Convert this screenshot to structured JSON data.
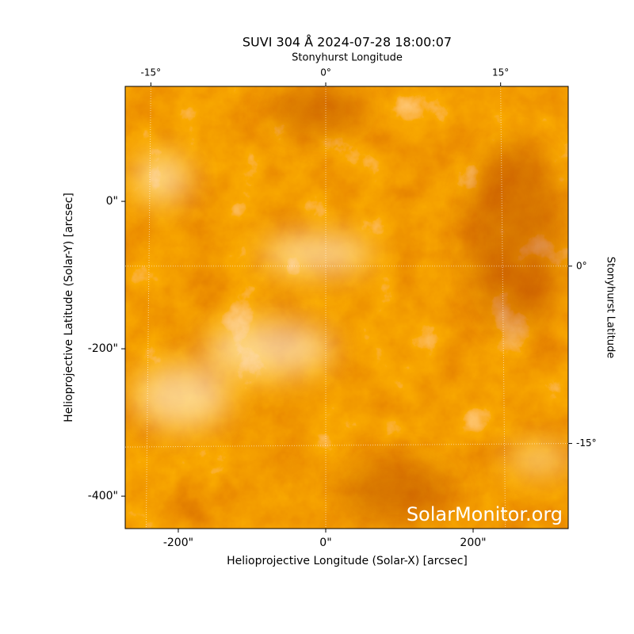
{
  "chart_data": {
    "type": "image",
    "title": "SUVI 304 Å 2024-07-28 18:00:07",
    "xlabel": "Helioprojective Longitude (Solar-X) [arcsec]",
    "ylabel": "Helioprojective Latitude (Solar-Y) [arcsec]",
    "x2label": "Stonyhurst Longitude",
    "y2label": "Stonyhurst Latitude",
    "annotation": "SolarMonitor.org",
    "xlim": [
      -272,
      329
    ],
    "ylim": [
      -444,
      156
    ],
    "xticks": [
      {
        "value": -200,
        "label": "-200\""
      },
      {
        "value": 0,
        "label": "0\""
      },
      {
        "value": 200,
        "label": "200\""
      }
    ],
    "yticks": [
      {
        "value": 0,
        "label": "0\""
      },
      {
        "value": -200,
        "label": "-200\""
      },
      {
        "value": -400,
        "label": "-400\""
      }
    ],
    "x2lim": [
      -17.2,
      20.8
    ],
    "x2ticks": [
      {
        "value": -15,
        "label": "-15°"
      },
      {
        "value": 0,
        "label": "0°"
      },
      {
        "value": 15,
        "label": "15°"
      }
    ],
    "y2lim": [
      -22.2,
      15.2
    ],
    "y2ticks": [
      {
        "value": 0,
        "label": "0°"
      },
      {
        "value": -15,
        "label": "-15°"
      }
    ],
    "grid": true
  }
}
